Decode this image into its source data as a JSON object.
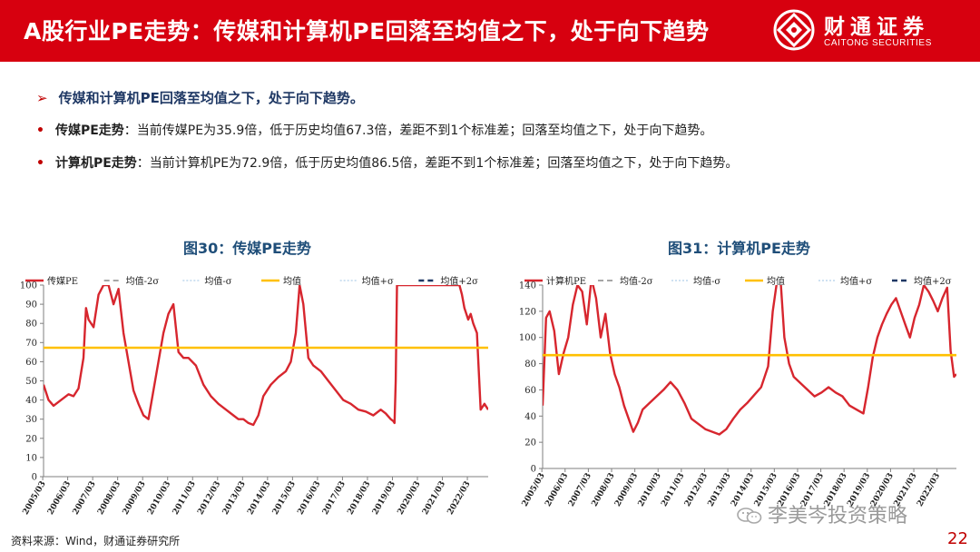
{
  "header": {
    "title": "A股行业PE走势：传媒和计算机PE回落至均值之下，处于向下趋势",
    "logo_cn": "财通证券",
    "logo_en": "CAITONG SECURITIES"
  },
  "bullets": {
    "headline": "传媒和计算机PE回落至均值之下，处于向下趋势。",
    "items": [
      {
        "key": "传媒PE走势",
        "text": "：当前传媒PE为35.9倍，低于历史均值67.3倍，差距不到1个标准差；回落至均值之下，处于向下趋势。"
      },
      {
        "key": "计算机PE走势",
        "text": "：当前计算机PE为72.9倍，低于历史均值86.5倍，差距不到1个标准差；回落至均值之下，处于向下趋势。"
      }
    ]
  },
  "figures": [
    {
      "title": "图30：传媒PE走势"
    },
    {
      "title": "图31：计算机PE走势"
    }
  ],
  "chart_data": [
    {
      "type": "line",
      "title": "图30：传媒PE走势",
      "ylim": [
        0,
        100
      ],
      "yticks": [
        0,
        10,
        20,
        30,
        40,
        50,
        60,
        70,
        80,
        90,
        100
      ],
      "xlim": [
        2005.2,
        2023.0
      ],
      "xticks": [
        "2005/03",
        "2006/03",
        "2007/03",
        "2008/03",
        "2009/03",
        "2010/03",
        "2011/03",
        "2012/03",
        "2013/03",
        "2014/03",
        "2015/03",
        "2016/03",
        "2017/03",
        "2018/03",
        "2019/03",
        "2020/03",
        "2021/03",
        "2022/03"
      ],
      "legend": [
        "传媒PE",
        "均值-2σ",
        "均值-σ",
        "均值",
        "均值+σ",
        "均值+2σ"
      ],
      "legend_position": "top",
      "colors": {
        "pe": "#d7262e",
        "minus2": "#a6a6a6",
        "minus1": "#bdd7ee",
        "mean": "#ffc000",
        "plus1": "#bdd7ee",
        "plus2": "#1f3864"
      },
      "mean": 67.3,
      "current": 35.9,
      "series": [
        {
          "name": "传媒PE",
          "x": [
            2005.2,
            2005.4,
            2005.6,
            2005.9,
            2006.2,
            2006.4,
            2006.6,
            2006.8,
            2006.9,
            2007.0,
            2007.2,
            2007.4,
            2007.6,
            2007.8,
            2008.0,
            2008.2,
            2008.4,
            2008.6,
            2008.8,
            2009.0,
            2009.2,
            2009.4,
            2009.6,
            2009.8,
            2010.0,
            2010.2,
            2010.4,
            2010.6,
            2010.8,
            2011.0,
            2011.3,
            2011.6,
            2011.9,
            2012.2,
            2012.5,
            2012.8,
            2013.0,
            2013.2,
            2013.4,
            2013.6,
            2013.8,
            2014.0,
            2014.3,
            2014.6,
            2014.9,
            2015.1,
            2015.3,
            2015.45,
            2015.6,
            2015.8,
            2016.0,
            2016.3,
            2016.6,
            2016.9,
            2017.2,
            2017.5,
            2017.8,
            2018.1,
            2018.4,
            2018.7,
            2018.9,
            2019.1,
            2019.2,
            2019.25,
            2019.3,
            2019.35,
            2019.6,
            2019.9,
            2020.2,
            2020.5,
            2020.8,
            2021.1,
            2021.4,
            2021.6,
            2021.75,
            2021.85,
            2021.95,
            2022.05,
            2022.2,
            2022.3,
            2022.4,
            2022.55,
            2022.7,
            2022.85,
            2023.0
          ],
          "values": [
            48,
            40,
            37,
            40,
            43,
            42,
            46,
            62,
            88,
            82,
            78,
            95,
            100,
            100,
            90,
            98,
            75,
            60,
            45,
            38,
            32,
            30,
            45,
            60,
            75,
            85,
            90,
            65,
            62,
            62,
            58,
            48,
            42,
            38,
            35,
            32,
            30,
            30,
            28,
            27,
            32,
            42,
            48,
            52,
            55,
            60,
            75,
            100,
            90,
            62,
            58,
            55,
            50,
            45,
            40,
            38,
            35,
            34,
            32,
            35,
            33,
            30,
            29,
            28,
            50,
            100,
            100,
            100,
            100,
            100,
            100,
            100,
            100,
            100,
            100,
            100,
            95,
            88,
            82,
            85,
            80,
            75,
            35,
            38,
            35
          ]
        }
      ]
    },
    {
      "type": "line",
      "title": "图31：计算机PE走势",
      "ylim": [
        0,
        140
      ],
      "yticks": [
        0,
        20,
        40,
        60,
        80,
        100,
        120,
        140
      ],
      "xlim": [
        2005.2,
        2023.0
      ],
      "xticks": [
        "2005/03",
        "2006/03",
        "2007/03",
        "2008/03",
        "2009/03",
        "2010/03",
        "2011/03",
        "2012/03",
        "2013/03",
        "2014/03",
        "2015/03",
        "2016/03",
        "2017/03",
        "2018/03",
        "2019/03",
        "2020/03",
        "2021/03",
        "2022/03"
      ],
      "legend": [
        "计算机PE",
        "均值-2σ",
        "均值-σ",
        "均值",
        "均值+σ",
        "均值+2σ"
      ],
      "legend_position": "top",
      "colors": {
        "pe": "#d7262e",
        "minus2": "#a6a6a6",
        "minus1": "#bdd7ee",
        "mean": "#ffc000",
        "plus1": "#bdd7ee",
        "plus2": "#1f3864"
      },
      "mean": 86.5,
      "current": 72.9,
      "series": [
        {
          "name": "计算机PE",
          "x": [
            2005.2,
            2005.35,
            2005.5,
            2005.7,
            2005.9,
            2006.1,
            2006.3,
            2006.5,
            2006.7,
            2006.9,
            2007.1,
            2007.3,
            2007.5,
            2007.7,
            2007.9,
            2008.1,
            2008.3,
            2008.5,
            2008.7,
            2008.9,
            2009.1,
            2009.3,
            2009.5,
            2009.8,
            2010.1,
            2010.4,
            2010.7,
            2011.0,
            2011.3,
            2011.6,
            2011.9,
            2012.2,
            2012.5,
            2012.8,
            2013.1,
            2013.4,
            2013.7,
            2014.0,
            2014.3,
            2014.6,
            2014.9,
            2015.1,
            2015.3,
            2015.45,
            2015.6,
            2015.8,
            2016.0,
            2016.3,
            2016.6,
            2016.9,
            2017.2,
            2017.5,
            2017.8,
            2018.1,
            2018.4,
            2018.7,
            2019.0,
            2019.2,
            2019.4,
            2019.6,
            2019.8,
            2020.0,
            2020.2,
            2020.4,
            2020.6,
            2020.8,
            2021.0,
            2021.2,
            2021.4,
            2021.6,
            2021.8,
            2022.0,
            2022.2,
            2022.4,
            2022.6,
            2022.75,
            2022.9,
            2023.0
          ],
          "values": [
            48,
            115,
            120,
            105,
            72,
            88,
            100,
            125,
            140,
            135,
            110,
            145,
            130,
            100,
            118,
            88,
            72,
            62,
            48,
            38,
            28,
            35,
            45,
            50,
            55,
            60,
            66,
            60,
            50,
            38,
            34,
            30,
            28,
            26,
            30,
            38,
            45,
            50,
            56,
            62,
            78,
            120,
            145,
            140,
            100,
            80,
            70,
            65,
            60,
            55,
            58,
            62,
            58,
            55,
            48,
            45,
            42,
            62,
            85,
            100,
            110,
            118,
            125,
            130,
            120,
            110,
            100,
            115,
            125,
            140,
            135,
            128,
            120,
            130,
            138,
            90,
            70,
            72
          ]
        }
      ]
    }
  ],
  "footer": {
    "source": "资料来源：Wind，财通证券研究所",
    "watermark": "李美岑投资策略",
    "page": "22"
  }
}
